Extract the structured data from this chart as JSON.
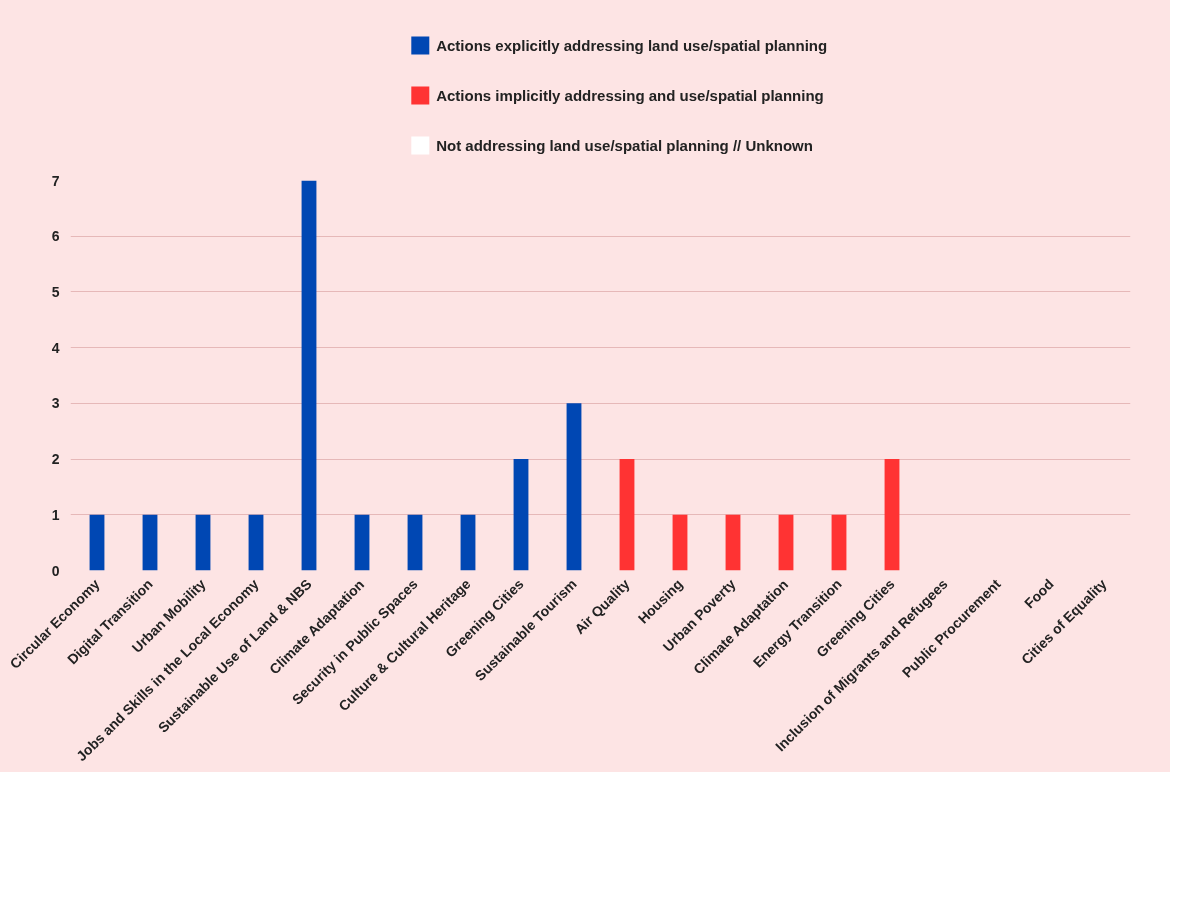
{
  "chart_data": {
    "type": "bar",
    "categories": [
      "Circular Economy",
      "Digital Transition",
      "Urban Mobility",
      "Jobs and Skills in the Local Economy",
      "Sustainable Use of Land & NBS",
      "Climate Adaptation",
      "Security in Public Spaces",
      "Culture & Cultural Heritage",
      "Greening Cities",
      "Sustainable Tourism",
      "Air Quality",
      "Housing",
      "Urban Poverty",
      "Climate Adaptation",
      "Energy Transition",
      "Greening Cities",
      "Inclusion of Migrants and Refugees",
      "Public Procurement",
      "Food",
      "Cities of Equality"
    ],
    "series": [
      {
        "name": "Actions explicitly addressing land use/spatial planning",
        "color": "#0047b3",
        "values": [
          1,
          1,
          1,
          1,
          7,
          1,
          1,
          1,
          2,
          3,
          null,
          null,
          null,
          null,
          null,
          null,
          null,
          null,
          null,
          null
        ]
      },
      {
        "name": "Actions implicitly addressing and use/spatial planning",
        "color": "#ff3333",
        "values": [
          null,
          null,
          null,
          null,
          null,
          null,
          null,
          null,
          null,
          null,
          2,
          1,
          1,
          1,
          1,
          2,
          null,
          null,
          null,
          null
        ]
      },
      {
        "name": "Not addressing land use/spatial planning // Unknown",
        "color": "#ffffff",
        "values": [
          null,
          null,
          null,
          null,
          null,
          null,
          null,
          null,
          null,
          null,
          null,
          null,
          null,
          null,
          null,
          null,
          0,
          0,
          0,
          0
        ]
      }
    ],
    "ylim": [
      0,
      7
    ],
    "yticks": [
      0,
      1,
      2,
      3,
      4,
      5,
      6,
      7
    ],
    "grid": "y",
    "legend": "top"
  }
}
